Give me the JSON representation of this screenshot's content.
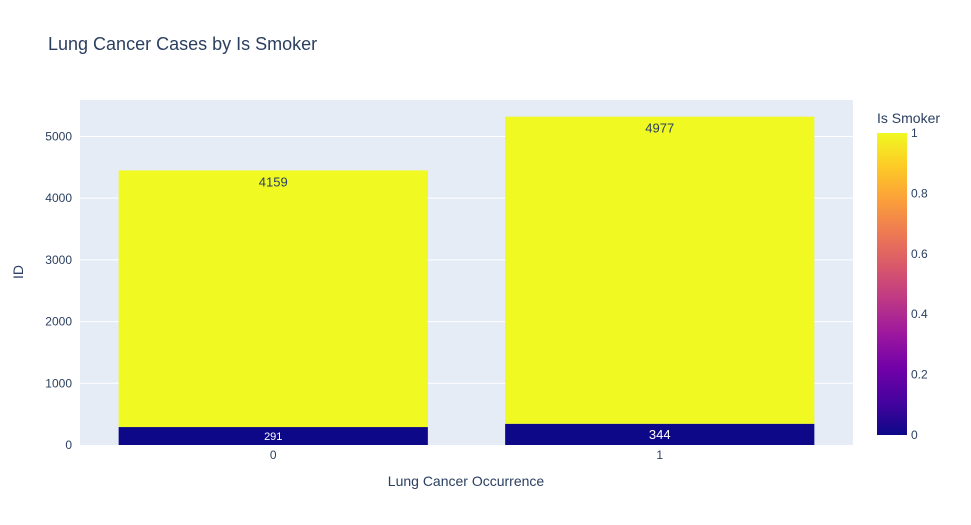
{
  "chart_data": {
    "type": "bar",
    "barmode": "stack",
    "title": "Lung Cancer Cases by Is Smoker",
    "xlabel": "Lung Cancer Occurrence",
    "ylabel": "ID",
    "categories": [
      "0",
      "1"
    ],
    "series": [
      {
        "smoker_value": 0,
        "values": [
          291,
          344
        ],
        "color": "#0d0887"
      },
      {
        "smoker_value": 1,
        "values": [
          4159,
          4977
        ],
        "color": "#f0f921"
      }
    ],
    "ylim": [
      0,
      5591
    ],
    "yticks": [
      0,
      1000,
      2000,
      3000,
      4000,
      5000
    ],
    "grid": true,
    "colorbar": {
      "title": "Is Smoker",
      "range": [
        0,
        1
      ],
      "ticks": [
        "0",
        "0.2",
        "0.4",
        "0.6",
        "0.8",
        "1"
      ],
      "colorscale": [
        "#0d0887",
        "#46039f",
        "#7201a8",
        "#9c179e",
        "#bd3786",
        "#d8576b",
        "#ed7953",
        "#fb9f3a",
        "#fdca26",
        "#f0f921"
      ]
    },
    "colors": {
      "plot_bg": "#e5ecf6",
      "grid": "#ffffff",
      "text": "#2a3f5f"
    }
  }
}
